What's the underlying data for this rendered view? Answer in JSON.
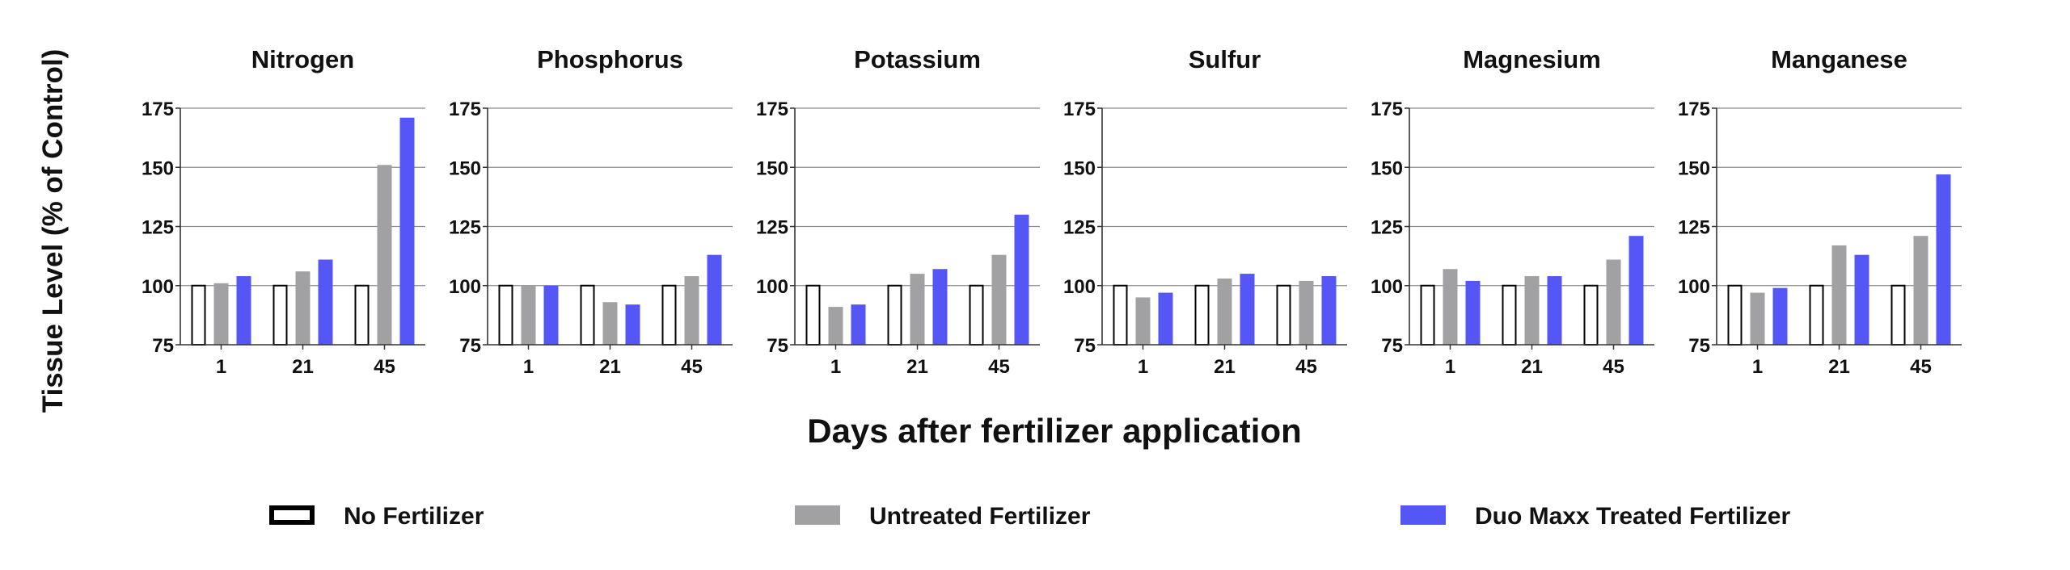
{
  "chart_data": {
    "type": "bar",
    "ylabel": "Tissue Level (% of Control)",
    "xlabel": "Days after fertilizer application",
    "ylim": [
      75,
      175
    ],
    "yticks": [
      75,
      100,
      125,
      150,
      175
    ],
    "grid": true,
    "legend_placement": "bottom",
    "categories": [
      "1",
      "21",
      "45"
    ],
    "series_styles": [
      {
        "name": "No Fertilizer",
        "fill": "#ffffff",
        "stroke": "#000000"
      },
      {
        "name": "Untreated Fertilizer",
        "fill": "#a1a1a4"
      },
      {
        "name": "Duo Maxx Treated Fertilizer",
        "fill": "#5457f5"
      }
    ],
    "panels": [
      {
        "title": "Nitrogen",
        "series": [
          {
            "name": "No Fertilizer",
            "values": [
              100,
              100,
              100
            ]
          },
          {
            "name": "Untreated Fertilizer",
            "values": [
              101,
              106,
              151
            ]
          },
          {
            "name": "Duo Maxx Treated Fertilizer",
            "values": [
              104,
              111,
              171
            ]
          }
        ]
      },
      {
        "title": "Phosphorus",
        "series": [
          {
            "name": "No Fertilizer",
            "values": [
              100,
              100,
              100
            ]
          },
          {
            "name": "Untreated Fertilizer",
            "values": [
              100,
              93,
              104
            ]
          },
          {
            "name": "Duo Maxx Treated Fertilizer",
            "values": [
              100,
              92,
              113
            ]
          }
        ]
      },
      {
        "title": "Potassium",
        "series": [
          {
            "name": "No Fertilizer",
            "values": [
              100,
              100,
              100
            ]
          },
          {
            "name": "Untreated Fertilizer",
            "values": [
              91,
              105,
              113
            ]
          },
          {
            "name": "Duo Maxx Treated Fertilizer",
            "values": [
              92,
              107,
              130
            ]
          }
        ]
      },
      {
        "title": "Sulfur",
        "series": [
          {
            "name": "No Fertilizer",
            "values": [
              100,
              100,
              100
            ]
          },
          {
            "name": "Untreated Fertilizer",
            "values": [
              95,
              103,
              102
            ]
          },
          {
            "name": "Duo Maxx Treated Fertilizer",
            "values": [
              97,
              105,
              104
            ]
          }
        ]
      },
      {
        "title": "Magnesium",
        "series": [
          {
            "name": "No Fertilizer",
            "values": [
              100,
              100,
              100
            ]
          },
          {
            "name": "Untreated Fertilizer",
            "values": [
              107,
              104,
              111
            ]
          },
          {
            "name": "Duo Maxx Treated Fertilizer",
            "values": [
              102,
              104,
              121
            ]
          }
        ]
      },
      {
        "title": "Manganese",
        "series": [
          {
            "name": "No Fertilizer",
            "values": [
              100,
              100,
              100
            ]
          },
          {
            "name": "Untreated Fertilizer",
            "values": [
              97,
              117,
              121
            ]
          },
          {
            "name": "Duo Maxx Treated Fertilizer",
            "values": [
              99,
              113,
              147
            ]
          }
        ]
      }
    ]
  }
}
